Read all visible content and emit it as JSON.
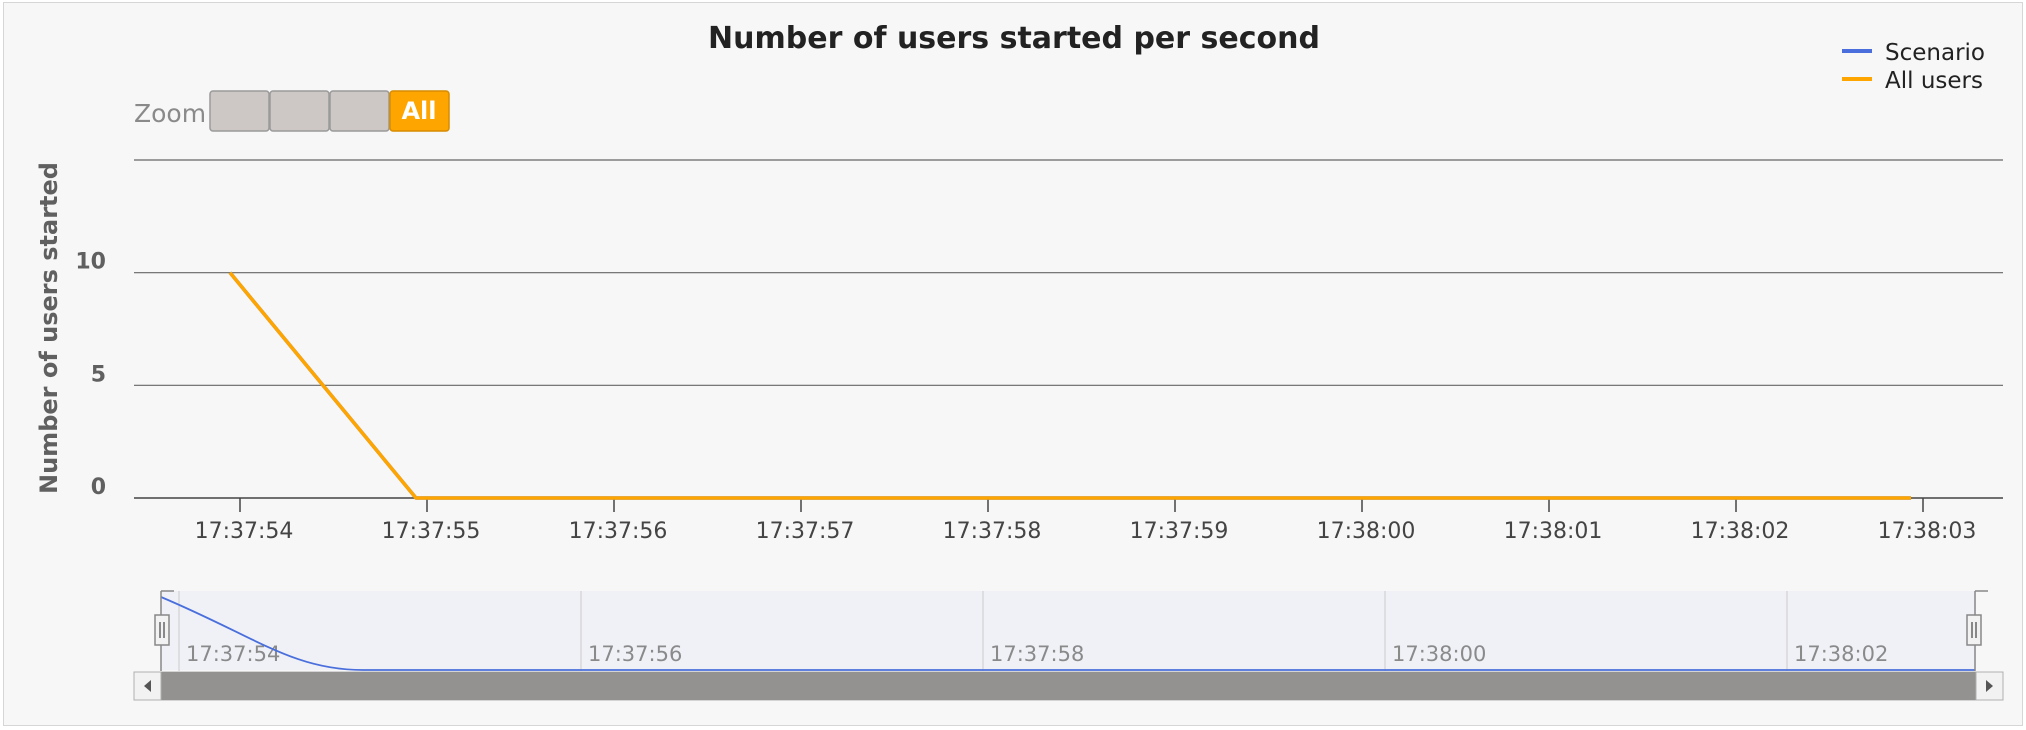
{
  "chart_data": {
    "type": "line",
    "title": "Number of users started per second",
    "ylabel": "Number of users started",
    "xlabel": "",
    "x": [
      "17:37:54",
      "17:37:55",
      "17:37:56",
      "17:37:57",
      "17:37:58",
      "17:37:59",
      "17:38:00",
      "17:38:01",
      "17:38:02",
      "17:38:03"
    ],
    "x_ticks": [
      "17:37:54",
      "17:37:55",
      "17:37:56",
      "17:37:57",
      "17:37:58",
      "17:37:59",
      "17:38:00",
      "17:38:01",
      "17:38:02",
      "17:38:03"
    ],
    "y_ticks": [
      "0",
      "5",
      "10"
    ],
    "ylim": [
      0,
      15
    ],
    "grid": true,
    "legend_position": "top-right",
    "series": [
      {
        "name": "Scenario",
        "color": "#4a6fdc",
        "values": [
          10,
          0,
          0,
          0,
          0,
          0,
          0,
          0,
          0,
          0
        ]
      },
      {
        "name": "All users",
        "color": "#ffa500",
        "values": [
          10,
          0,
          0,
          0,
          0,
          0,
          0,
          0,
          0,
          0
        ]
      }
    ],
    "navigator": {
      "tick_labels": [
        "17:37:54",
        "17:37:56",
        "17:37:58",
        "17:38:00",
        "17:38:02"
      ]
    }
  },
  "zoom": {
    "label": "Zoom",
    "buttons": [
      {
        "label": "",
        "active": false
      },
      {
        "label": "",
        "active": false
      },
      {
        "label": "",
        "active": false
      },
      {
        "label": "All",
        "active": true
      }
    ]
  },
  "colors": {
    "background": "#f7f7f7",
    "grid": "#666666",
    "axis_text": "#606060",
    "title": "#222222",
    "zoom_active": "#ffa500",
    "zoom_inactive": "#cdc8c5",
    "scrollbar": "#939290"
  }
}
